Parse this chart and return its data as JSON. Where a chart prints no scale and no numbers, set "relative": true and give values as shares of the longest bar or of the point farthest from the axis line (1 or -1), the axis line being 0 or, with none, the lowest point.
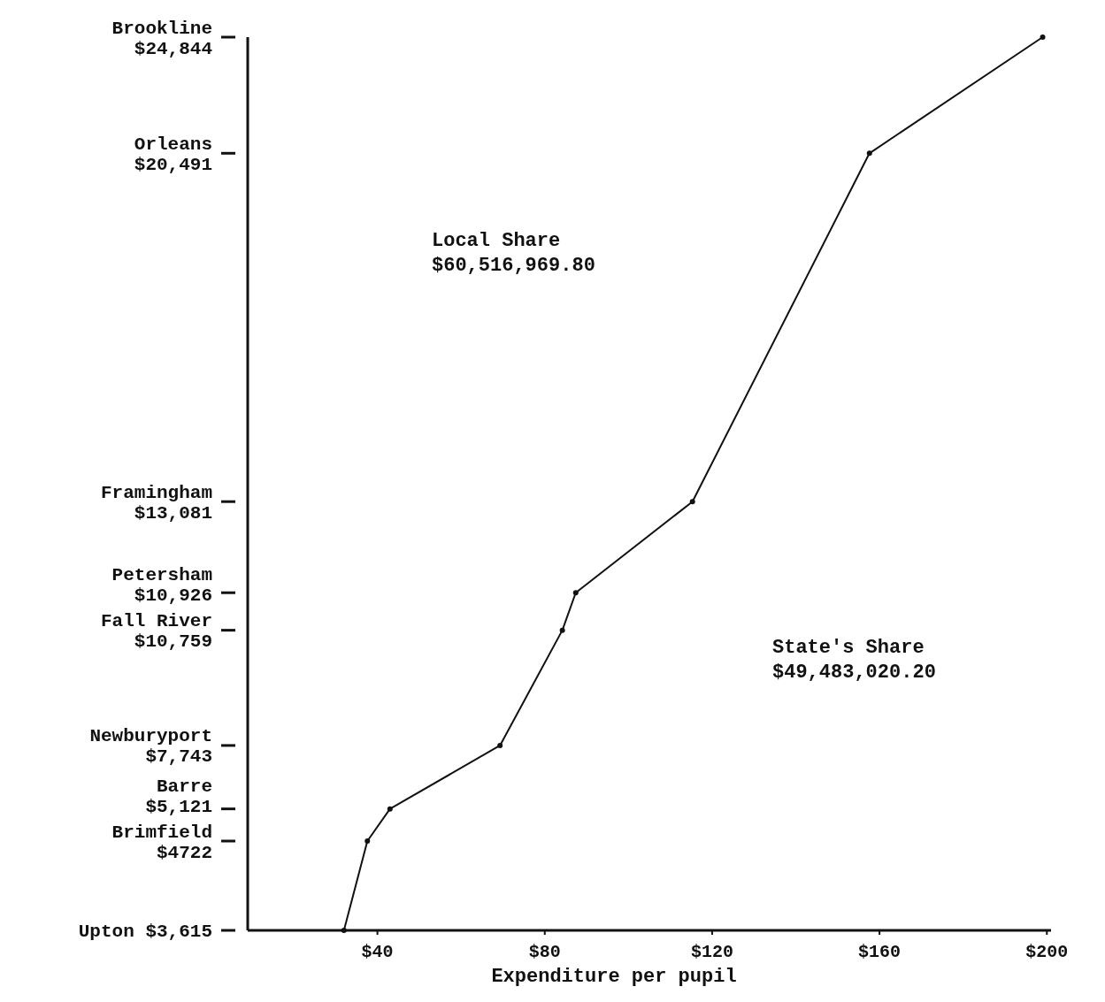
{
  "chart_data": {
    "type": "line",
    "relative": true,
    "xlabel": "Expenditure per pupil",
    "x": [
      32,
      37.6,
      43,
      69.3,
      84.2,
      87.4,
      115.3,
      157.6,
      199
    ],
    "values": [
      0,
      0.1,
      0.136,
      0.207,
      0.336,
      0.378,
      0.48,
      0.87,
      1
    ],
    "color": "#111111",
    "marker": "circle",
    "grid": false,
    "xlim": [
      9,
      201
    ],
    "xticks": [
      {
        "value": 40,
        "label": "$40"
      },
      {
        "value": 80,
        "label": "$80"
      },
      {
        "value": 120,
        "label": "$120"
      },
      {
        "value": 160,
        "label": "$160"
      },
      {
        "value": 200,
        "label": "$200"
      }
    ],
    "annotations": [
      "Upton $3,615",
      "Brimfield\n$4722",
      "Barre\n$5,121",
      "Newburyport\n$7,743",
      "Fall River\n$10,759",
      "Petersham\n$10,926",
      "Framingham\n$13,081",
      "Orleans\n$20,491",
      "Brookline\n$24,844",
      "Local Share\n$60,516,969.80",
      "State's Share\n$49,483,020.20"
    ]
  }
}
